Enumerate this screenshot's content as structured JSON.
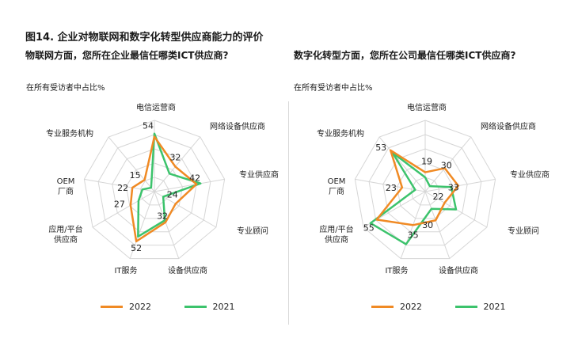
{
  "figure_title": "图14. 企业对物联网和数字化转型供应商能力的评价",
  "colors": {
    "y2022": "#f08a24",
    "y2021": "#3cc36c",
    "grid": "#d6d6d6"
  },
  "chart_data": [
    {
      "type": "radar",
      "title": "物联网方面，您所在企业最信任哪类ICT供应商?",
      "unit_note": "在所有受访者中占比%",
      "axes": [
        "电信运营商",
        "网络设备供应商",
        "专业供应商",
        "专业顾问",
        "设备供应商",
        "IT服务",
        "应用/平台供应商",
        "OEM厂商",
        "专业服务机构"
      ],
      "axis_label_lines": [
        [
          "电信运营商"
        ],
        [
          "网络设备供应商"
        ],
        [
          "专业供应商"
        ],
        [
          "专业顾问"
        ],
        [
          "设备供应商"
        ],
        [
          "IT服务"
        ],
        [
          "应用/平台",
          "供应商"
        ],
        [
          "OEM",
          "厂商"
        ],
        [
          "专业服务机构"
        ]
      ],
      "rmax": 70,
      "series": [
        {
          "name": "2022",
          "values": [
            54,
            32,
            42,
            24,
            32,
            52,
            27,
            22,
            15
          ]
        },
        {
          "name": "2021",
          "values": [
            57,
            23,
            46,
            10,
            30,
            47,
            18,
            12,
            5
          ]
        }
      ],
      "value_labels": [
        "54",
        "32",
        "42",
        "24",
        "32",
        "52",
        "27",
        "22",
        "15"
      ]
    },
    {
      "type": "radar",
      "title": "数字化转型方面，您所在公司最信任哪类ICT供应商?",
      "unit_note": "在所有受访者中占比%",
      "axes": [
        "电信运营商",
        "网络设备供应商",
        "专业供应商",
        "专业顾问",
        "设备供应商",
        "IT服务",
        "应用/平台供应商",
        "OEM厂商",
        "专业服务机构"
      ],
      "axis_label_lines": [
        [
          "电信运营商"
        ],
        [
          "网络设备供应商"
        ],
        [
          "专业供应商"
        ],
        [
          "专业顾问"
        ],
        [
          "设备供应商"
        ],
        [
          "IT服务"
        ],
        [
          "应用/平台",
          "供应商"
        ],
        [
          "OEM",
          "厂商"
        ],
        [
          "专业服务机构"
        ]
      ],
      "rmax": 70,
      "series": [
        {
          "name": "2022",
          "values": [
            19,
            30,
            33,
            22,
            30,
            35,
            55,
            23,
            53
          ]
        },
        {
          "name": "2021",
          "values": [
            14,
            7,
            26,
            35,
            18,
            55,
            62,
            10,
            50
          ]
        }
      ],
      "value_labels": [
        "19",
        "30",
        "33",
        "22",
        "30",
        "35",
        "55",
        "23",
        "53"
      ]
    }
  ],
  "legend": {
    "labels": [
      "2022",
      "2021"
    ]
  }
}
